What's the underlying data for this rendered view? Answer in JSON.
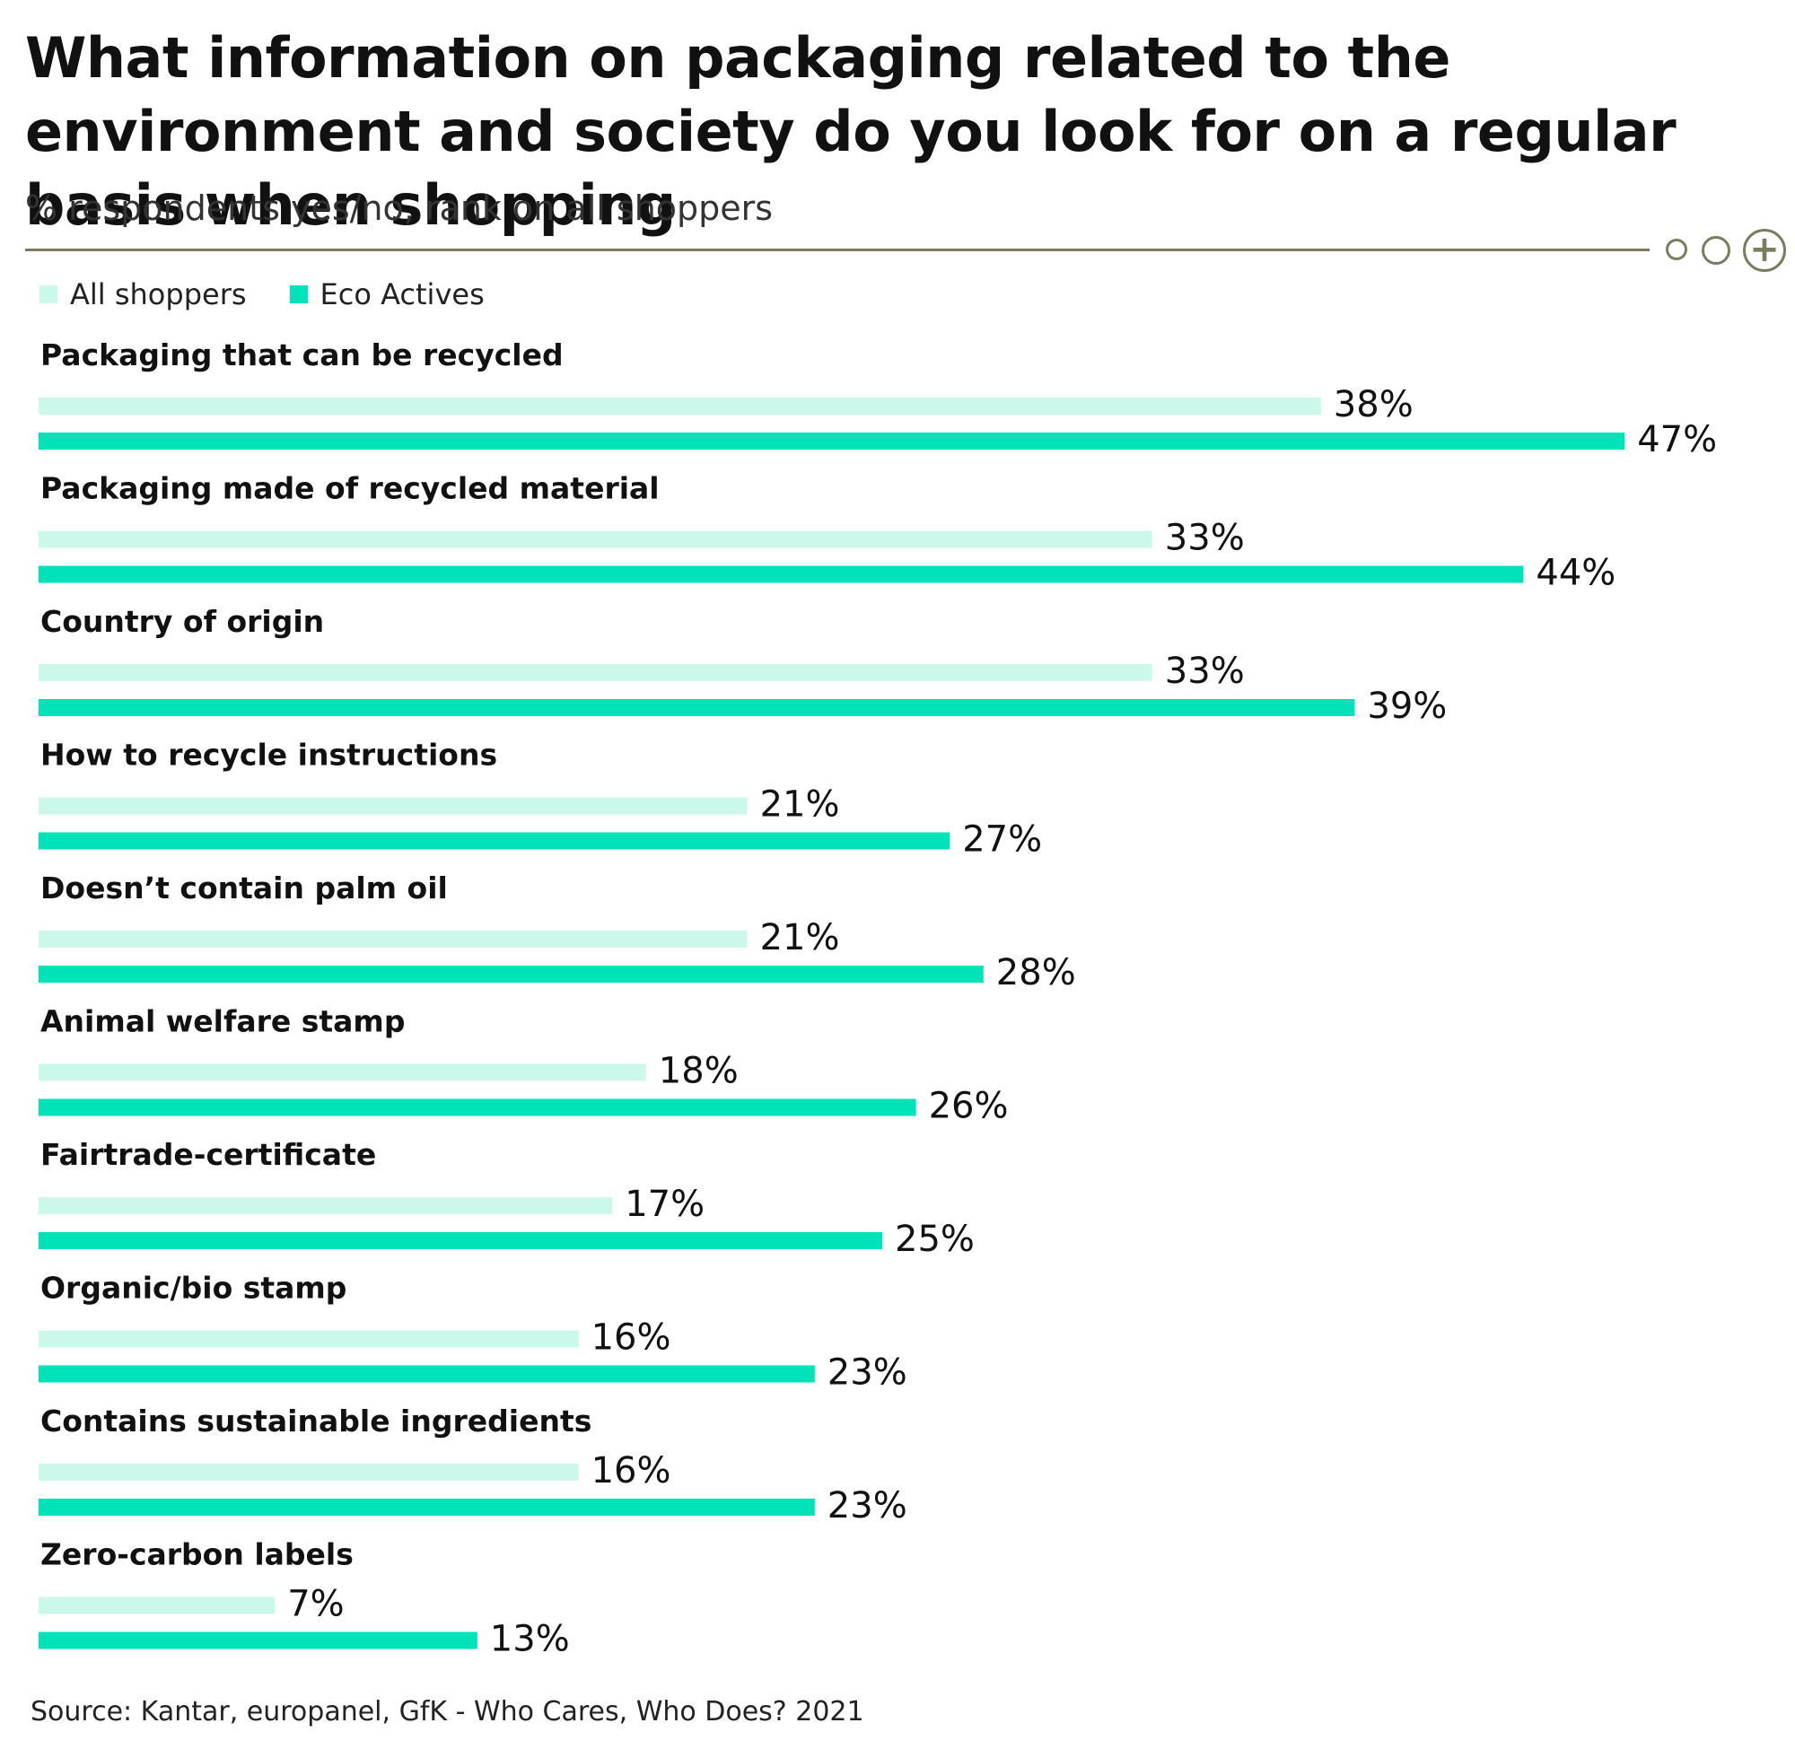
{
  "title": "What information on packaging related to the environment and society do you look for on a regular basis when shopping",
  "subtitle": "% respondents yes/no, rank on all shoppers",
  "source": "Source: Kantar, europanel, GfK - Who Cares, Who Does? 2021",
  "toolbar": {
    "expand_symbol": "+"
  },
  "colors": {
    "all_shoppers": "#ccf8ec",
    "eco_actives": "#00e2b8",
    "rule": "#7b7b5e"
  },
  "chart_data": {
    "type": "bar",
    "orientation": "horizontal",
    "title": "What information on packaging related to the environment and society do you look for on a regular basis when shopping",
    "subtitle": "% respondents yes/no, rank on all shoppers",
    "legend_position": "top-left",
    "grid": false,
    "xlim": [
      0,
      50
    ],
    "categories": [
      "Packaging that can be recycled",
      "Packaging made of recycled material",
      "Country of origin",
      "How to recycle instructions",
      "Doesn’t contain palm oil",
      "Animal welfare stamp",
      "Fairtrade-certificate",
      "Organic/bio stamp",
      "Contains sustainable ingredients",
      "Zero-carbon labels"
    ],
    "series": [
      {
        "name": "All shoppers",
        "values": [
          38,
          33,
          33,
          21,
          21,
          18,
          17,
          16,
          16,
          7
        ]
      },
      {
        "name": "Eco Actives",
        "values": [
          47,
          44,
          39,
          27,
          28,
          26,
          25,
          23,
          23,
          13
        ]
      }
    ]
  }
}
